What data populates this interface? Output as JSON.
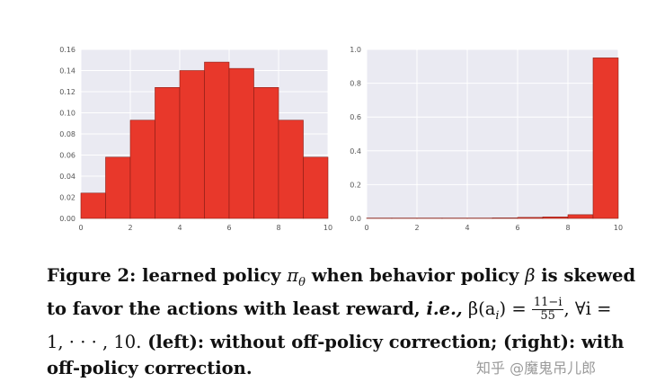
{
  "chart_data": [
    {
      "type": "bar",
      "panel": "left",
      "x": [
        0,
        1,
        2,
        3,
        4,
        5,
        6,
        7,
        8,
        9
      ],
      "values": [
        0.024,
        0.058,
        0.093,
        0.124,
        0.14,
        0.148,
        0.142,
        0.124,
        0.093,
        0.058
      ],
      "xlim": [
        0,
        10
      ],
      "ylim": [
        0,
        0.16
      ],
      "xticks": [
        "0",
        "2",
        "4",
        "6",
        "8",
        "10"
      ],
      "yticks": [
        "0.00",
        "0.02",
        "0.04",
        "0.06",
        "0.08",
        "0.10",
        "0.12",
        "0.14",
        "0.16"
      ],
      "grid": true,
      "bar_color": "#e8382b",
      "bg_color": "#eaeaf2"
    },
    {
      "type": "bar",
      "panel": "right",
      "x": [
        0,
        1,
        2,
        3,
        4,
        5,
        6,
        7,
        8,
        9
      ],
      "values": [
        0.002,
        0.002,
        0.002,
        0.002,
        0.002,
        0.003,
        0.006,
        0.009,
        0.022,
        0.95
      ],
      "xlim": [
        0,
        10
      ],
      "ylim": [
        0,
        1.0
      ],
      "xticks": [
        "0",
        "2",
        "4",
        "6",
        "8",
        "10"
      ],
      "yticks": [
        "0.0",
        "0.2",
        "0.4",
        "0.6",
        "0.8",
        "1.0"
      ],
      "grid": true,
      "bar_color": "#e8382b",
      "bg_color": "#eaeaf2"
    }
  ],
  "caption": {
    "label": "Figure 2:",
    "text_before_pi": " learned policy ",
    "pi": "π",
    "theta": "θ",
    "text_before_beta": " when behavior policy ",
    "beta": "β",
    "text_line1_end": " is skewed",
    "text_line2": "to favor the actions with least reward, ",
    "ie": "i.e.,",
    "formula": " β(a",
    "sub_i": "i",
    "formula_eq": ") = ",
    "frac_num": "11−i",
    "frac_den": "55",
    "forall": ", ∀i =",
    "line3_start": "1, · · · , 10.",
    "line3_rest": " (left): without off-policy correction; (right): with",
    "line4": "off-policy correction."
  },
  "watermark": "知乎 @魔鬼吊儿郎"
}
